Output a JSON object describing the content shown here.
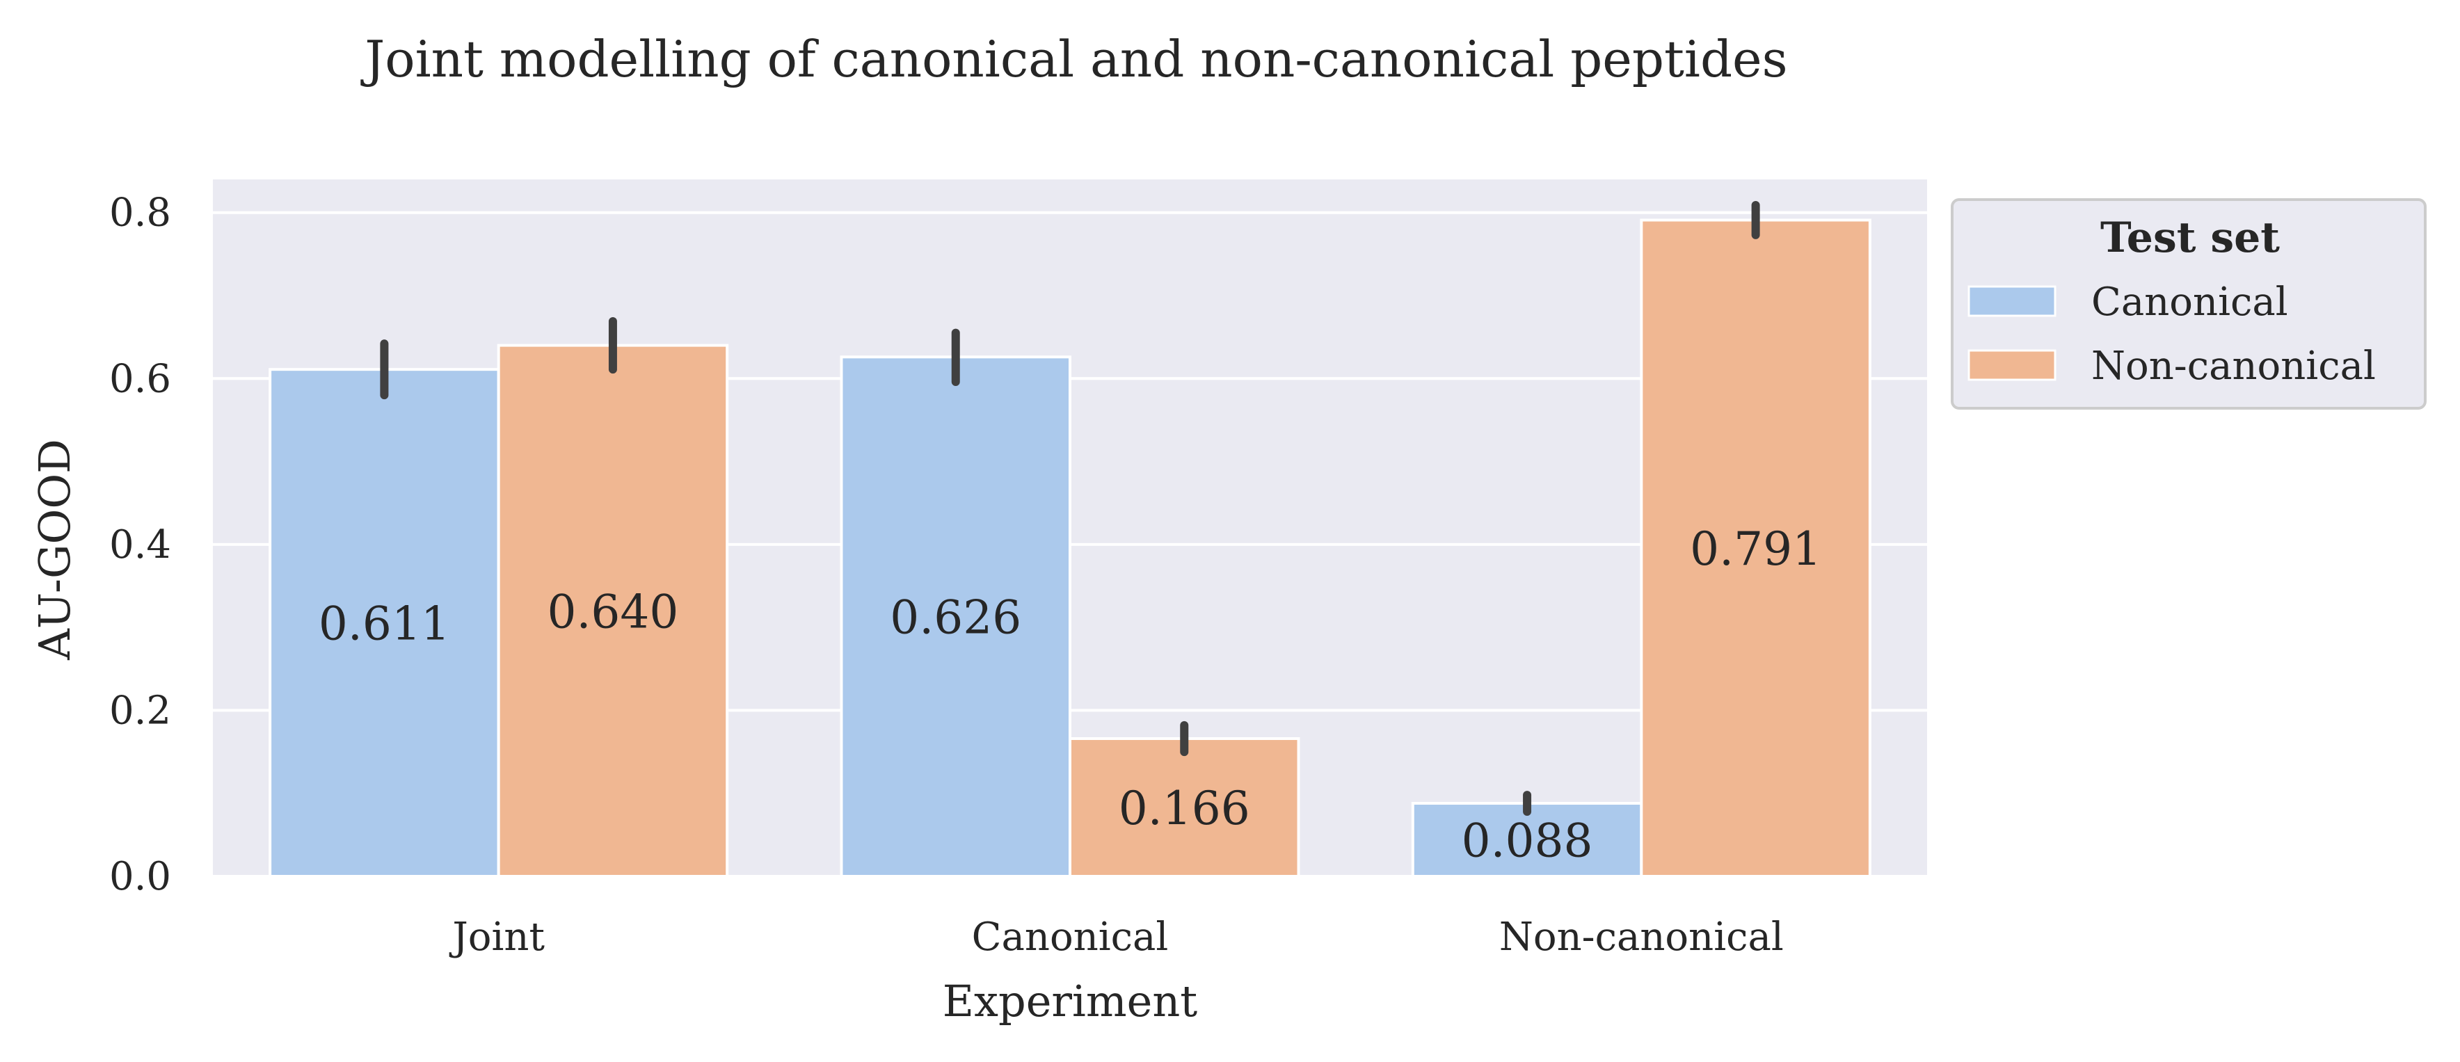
{
  "chart_data": {
    "type": "bar",
    "title": "Joint modelling of canonical and non-canonical peptides",
    "xlabel": "Experiment",
    "ylabel": "AU-GOOD",
    "categories": [
      "Joint",
      "Canonical",
      "Non-canonical"
    ],
    "ylim": [
      0,
      0.84
    ],
    "yticks": [
      "0.0",
      "0.2",
      "0.4",
      "0.6",
      "0.8"
    ],
    "ytick_values": [
      0.0,
      0.2,
      0.4,
      0.6,
      0.8
    ],
    "grid": true,
    "legend": {
      "title": "Test set",
      "placement": "outside top-right"
    },
    "series": [
      {
        "name": "Canonical",
        "color": "#abc9ec",
        "values": [
          0.611,
          0.626,
          0.088
        ],
        "labels": [
          "0.611",
          "0.626",
          "0.088"
        ],
        "error_low": [
          0.58,
          0.596,
          0.078
        ],
        "error_high": [
          0.642,
          0.655,
          0.098
        ]
      },
      {
        "name": "Non-canonical",
        "color": "#f0b792",
        "values": [
          0.64,
          0.166,
          0.791
        ],
        "labels": [
          "0.640",
          "0.166",
          "0.791"
        ],
        "error_low": [
          0.611,
          0.15,
          0.773
        ],
        "error_high": [
          0.669,
          0.182,
          0.809
        ]
      }
    ]
  },
  "colors": {
    "plot_background": "#eaeaf2",
    "grid": "#ffffff",
    "error_bar": "#404040",
    "legend_border": "#cccccc",
    "legend_background": "#eaeaf2"
  }
}
